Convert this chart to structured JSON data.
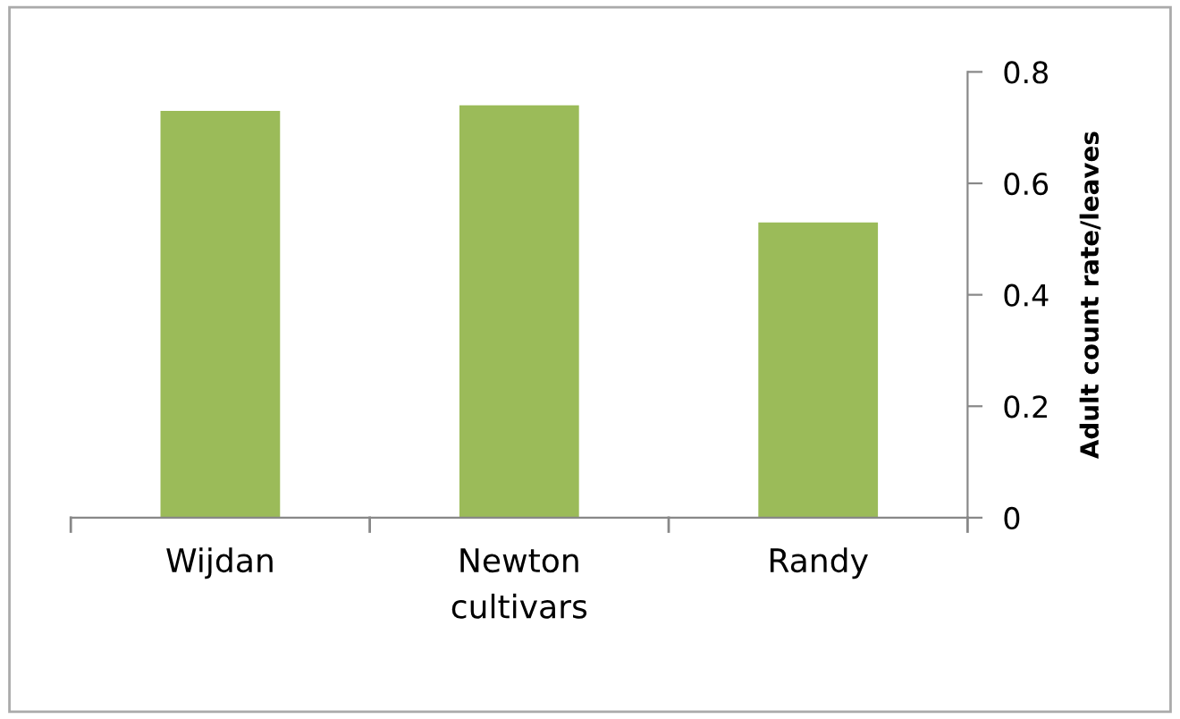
{
  "chart_data": {
    "type": "bar",
    "categories": [
      "Wijdan",
      "Newton",
      "Randy"
    ],
    "values": [
      0.73,
      0.74,
      0.53
    ],
    "color": "#9bbb59",
    "ylim": [
      0,
      0.8
    ],
    "yticks": [
      0,
      0.2,
      0.4,
      0.6,
      0.8
    ],
    "xlabel": "cultivars",
    "ylabel": "Adult count rate/leaves",
    "grid": false
  }
}
